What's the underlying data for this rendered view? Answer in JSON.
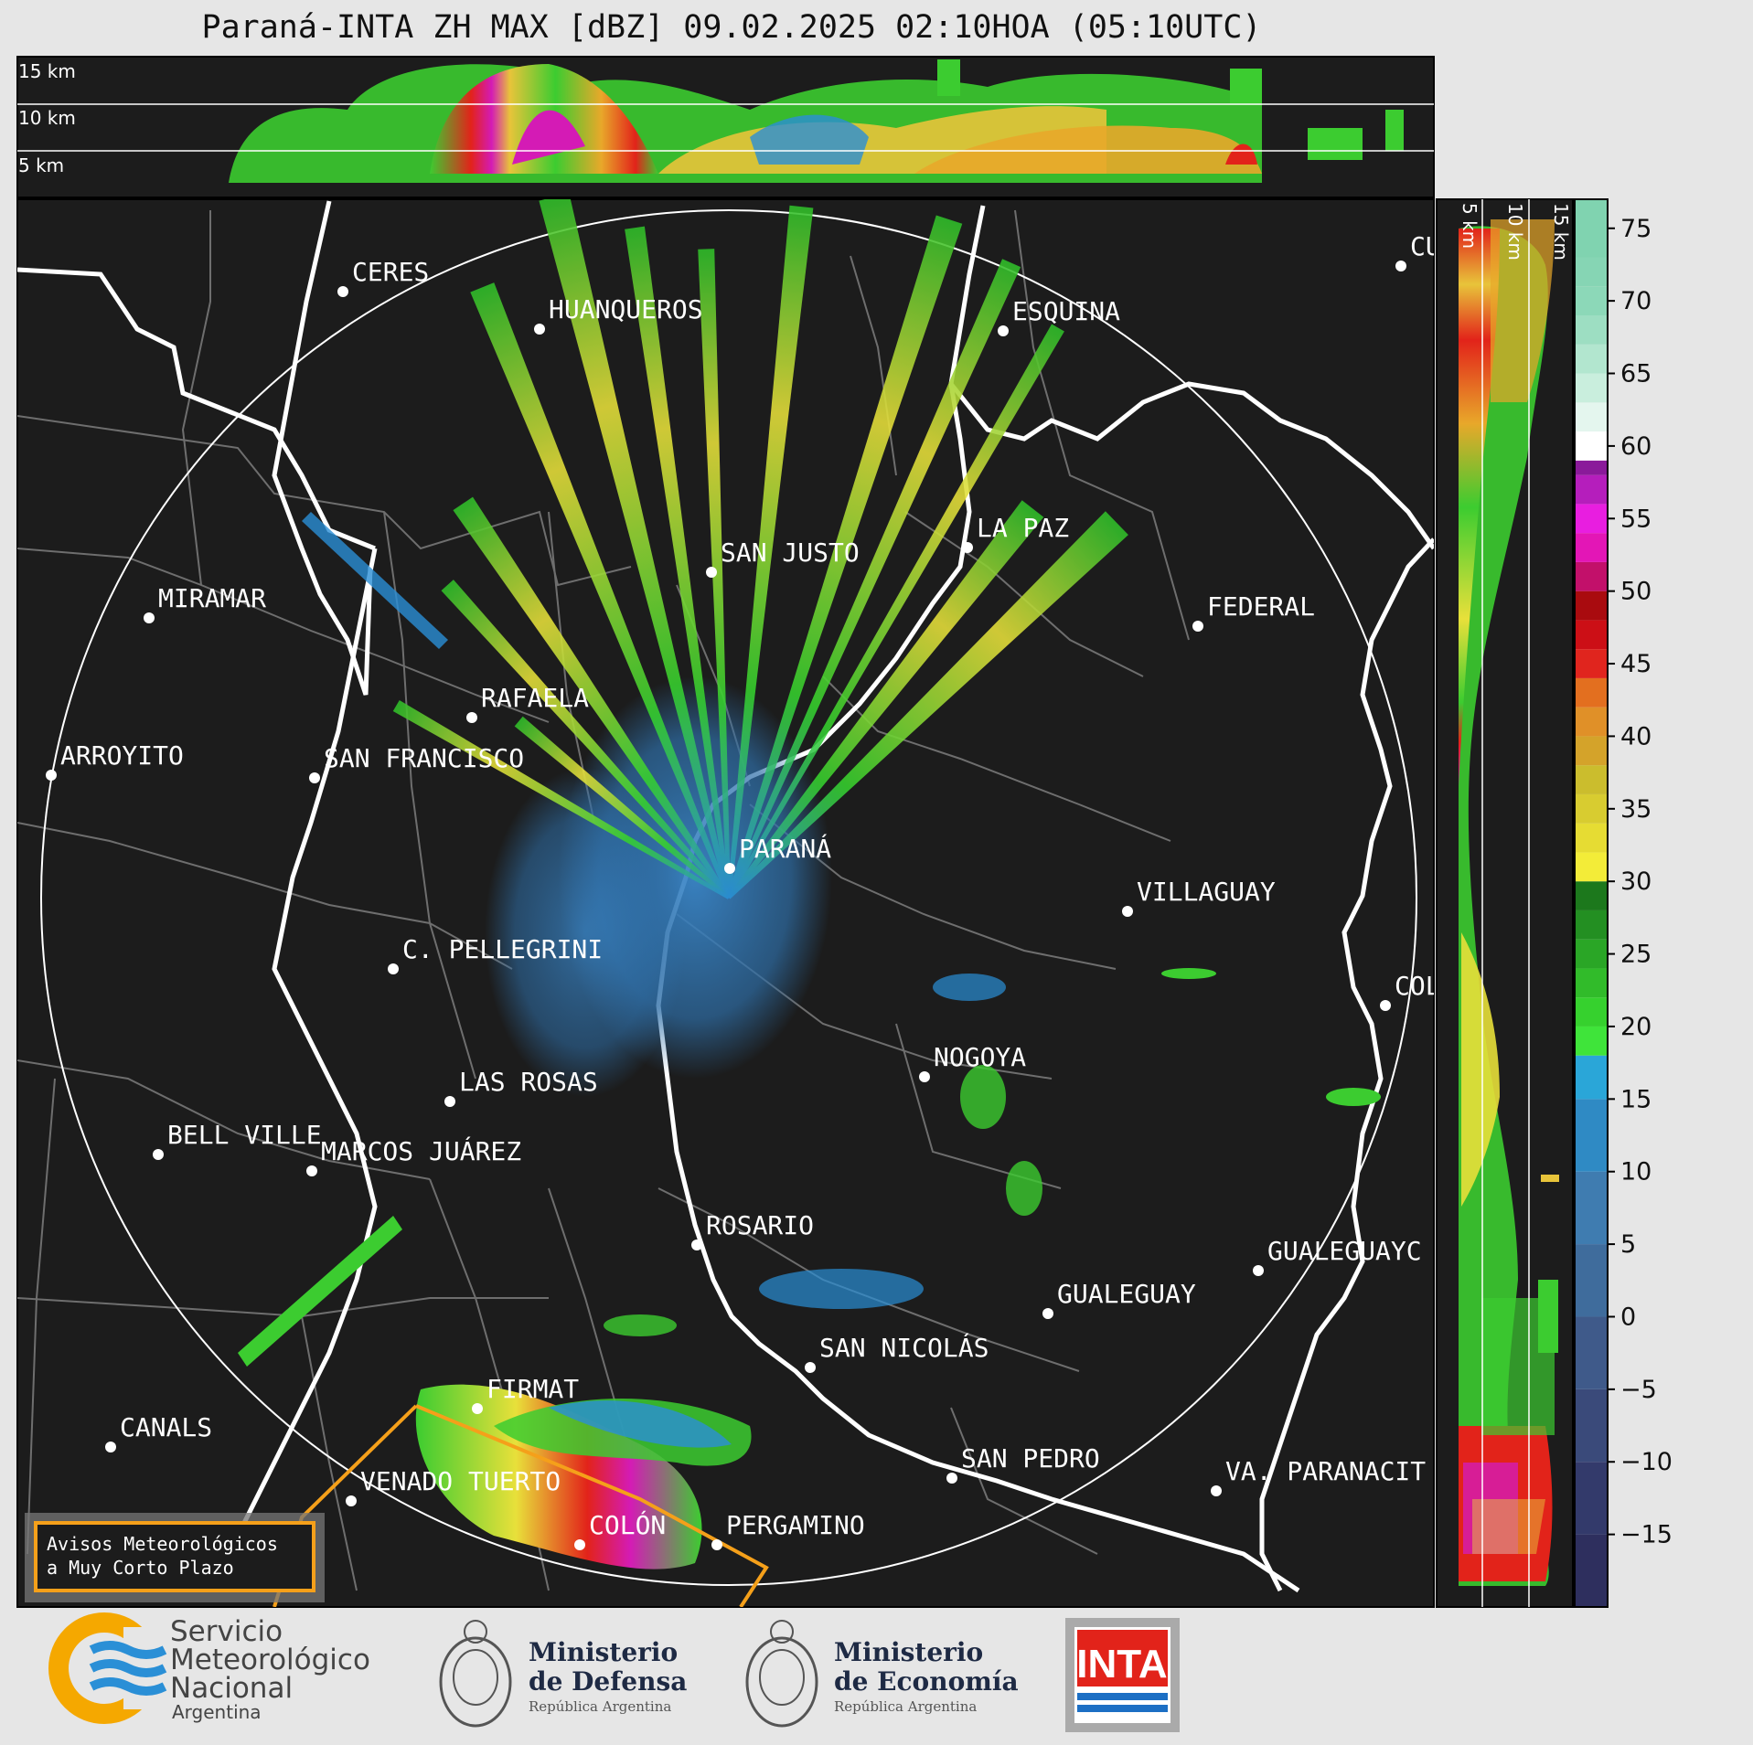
{
  "title": "Paraná-INTA ZH MAX [dBZ] 09.02.2025 02:10HOA (05:10UTC)",
  "top_panel": {
    "labels": [
      "15 km",
      "10 km",
      "5 km"
    ]
  },
  "side_panel": {
    "labels": [
      "5 km",
      "10 km",
      "15 km"
    ]
  },
  "colorbar": {
    "ticks": [
      "75",
      "70",
      "65",
      "60",
      "55",
      "50",
      "45",
      "40",
      "35",
      "30",
      "25",
      "20",
      "15",
      "10",
      "5",
      "0",
      "−5",
      "−10",
      "−15"
    ],
    "tick_values": [
      75,
      70,
      65,
      60,
      55,
      50,
      45,
      40,
      35,
      30,
      25,
      20,
      15,
      10,
      5,
      0,
      -5,
      -10,
      -15
    ],
    "range": [
      -20,
      77
    ]
  },
  "cities": [
    {
      "name": "CERES"
    },
    {
      "name": "HUANQUEROS"
    },
    {
      "name": "ESQUINA"
    },
    {
      "name": "CU"
    },
    {
      "name": "SAN JUSTO"
    },
    {
      "name": "LA PAZ"
    },
    {
      "name": "MIRAMAR"
    },
    {
      "name": "FEDERAL"
    },
    {
      "name": "RAFAELA"
    },
    {
      "name": "ARROYITO"
    },
    {
      "name": "SAN FRANCISCO"
    },
    {
      "name": "PARANÁ"
    },
    {
      "name": "VILLAGUAY"
    },
    {
      "name": "C. PELLEGRINI"
    },
    {
      "name": "COLÓ"
    },
    {
      "name": "NOGOYA"
    },
    {
      "name": "LAS ROSAS"
    },
    {
      "name": "BELL VILLE"
    },
    {
      "name": "MARCOS JUÁREZ"
    },
    {
      "name": "ROSARIO"
    },
    {
      "name": "GUALEGUAYC"
    },
    {
      "name": "GUALEGUAY"
    },
    {
      "name": "SAN NICOLÁS"
    },
    {
      "name": "FIRMAT"
    },
    {
      "name": "CANALS"
    },
    {
      "name": "SAN PEDRO"
    },
    {
      "name": "VENADO TUERTO"
    },
    {
      "name": "VA. PARANACIT"
    },
    {
      "name": "COLÓN"
    },
    {
      "name": "PERGAMINO"
    }
  ],
  "warning_box": {
    "line1": "Avisos Meteorológicos",
    "line2": "a Muy Corto Plazo"
  },
  "logos": {
    "smn": [
      "Servicio",
      "Meteorológico",
      "Nacional",
      "Argentina"
    ],
    "defensa": [
      "Ministerio",
      "de Defensa",
      "República Argentina"
    ],
    "economia": [
      "Ministerio",
      "de Economía",
      "República Argentina"
    ],
    "inta": "INTA"
  },
  "colors": {
    "map_bg": "#1c1c1c",
    "accent_orange": "#f5a01a",
    "smn_blue": "#2a8fd6",
    "inta_red": "#e2231a"
  }
}
